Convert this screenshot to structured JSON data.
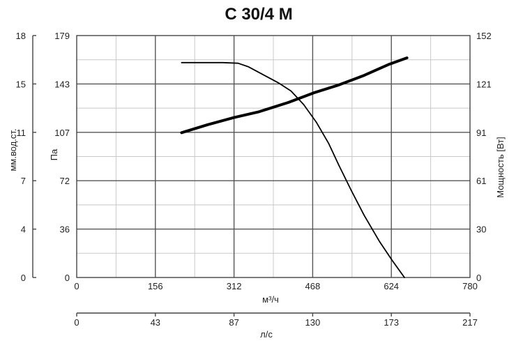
{
  "chart_data": {
    "type": "line",
    "title": "C 30/4 M",
    "xlabel": "м³/ч",
    "x2label": "л/с",
    "ylabel": "Па",
    "y_left_outer_label": "мм.вод.ст.",
    "y_right_label": "Мощность [Вт]",
    "xlim": [
      0,
      780
    ],
    "ylim": [
      0,
      179
    ],
    "y_right_lim": [
      0,
      152
    ],
    "x_ticks": [
      "0",
      "156",
      "312",
      "468",
      "624",
      "780"
    ],
    "x2_ticks": [
      "0",
      "43",
      "87",
      "130",
      "173",
      "217"
    ],
    "y_ticks": [
      "0",
      "36",
      "72",
      "107",
      "143",
      "179"
    ],
    "y_outer_ticks": [
      "0",
      "4",
      "7",
      "11",
      "15",
      "18"
    ],
    "y_right_ticks": [
      "0",
      "30",
      "61",
      "91",
      "121",
      "152"
    ],
    "grid": true,
    "series": [
      {
        "role": "pressure",
        "axis": "left",
        "line_color": "#000000",
        "x": [
          208,
          250,
          290,
          320,
          340,
          370,
          400,
          425,
          450,
          475,
          500,
          520,
          545,
          570,
          600,
          625,
          650,
          675,
          700
        ],
        "y": [
          159,
          159,
          159,
          158.5,
          156,
          150,
          144,
          138,
          128,
          115,
          99,
          83,
          64,
          46,
          27,
          13,
          0,
          0,
          0
        ]
      },
      {
        "role": "power",
        "axis": "right",
        "line_color": "#000000",
        "x": [
          208,
          260,
          312,
          360,
          420,
          470,
          520,
          570,
          620,
          655,
          700
        ],
        "y": [
          91,
          96,
          100.5,
          104,
          110,
          116,
          121,
          127,
          134,
          138,
          138
        ]
      }
    ]
  }
}
